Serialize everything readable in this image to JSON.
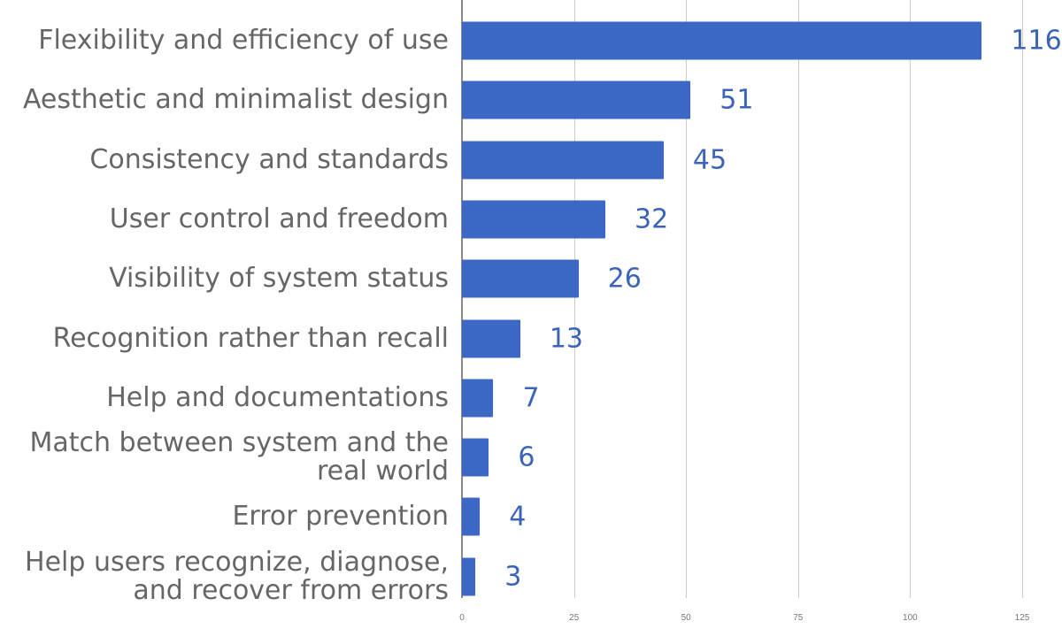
{
  "chart_data": {
    "type": "bar",
    "orientation": "horizontal",
    "title": "",
    "xlabel": "",
    "ylabel": "",
    "categories": [
      "Flexibility and efficiency of use",
      "Aesthetic and minimalist design",
      "Consistency and standards",
      "User control and freedom",
      "Visibility of system status",
      "Recognition rather than recall",
      "Help and documentations",
      "Match between system and the real world",
      "Error prevention",
      "Help users recognize, diagnose, and recover from errors"
    ],
    "category_lines": [
      [
        "Flexibility and efficiency of use"
      ],
      [
        "Aesthetic and minimalist design"
      ],
      [
        "Consistency and standards"
      ],
      [
        "User control and freedom"
      ],
      [
        "Visibility of system status"
      ],
      [
        "Recognition rather than recall"
      ],
      [
        "Help and documentations"
      ],
      [
        "Match between system and the",
        "real world"
      ],
      [
        "Error prevention"
      ],
      [
        "Help users recognize, diagnose,",
        "and recover from errors"
      ]
    ],
    "values": [
      116,
      51,
      45,
      32,
      26,
      13,
      7,
      6,
      4,
      3
    ],
    "data_labels": [
      "116",
      "51",
      "45",
      "32",
      "26",
      "13",
      "7",
      "6",
      "4",
      "3"
    ],
    "xlim": [
      0,
      125
    ],
    "x_ticks": [
      "0",
      "25",
      "50",
      "75",
      "100",
      "125"
    ],
    "x_tick_values": [
      0,
      25,
      50,
      75,
      100,
      125
    ],
    "grid": true,
    "legend": null,
    "colors": {
      "bar": "#3b68c4",
      "label": "#3b63b8",
      "category_text": "#666666",
      "grid": "#cccccc"
    }
  }
}
